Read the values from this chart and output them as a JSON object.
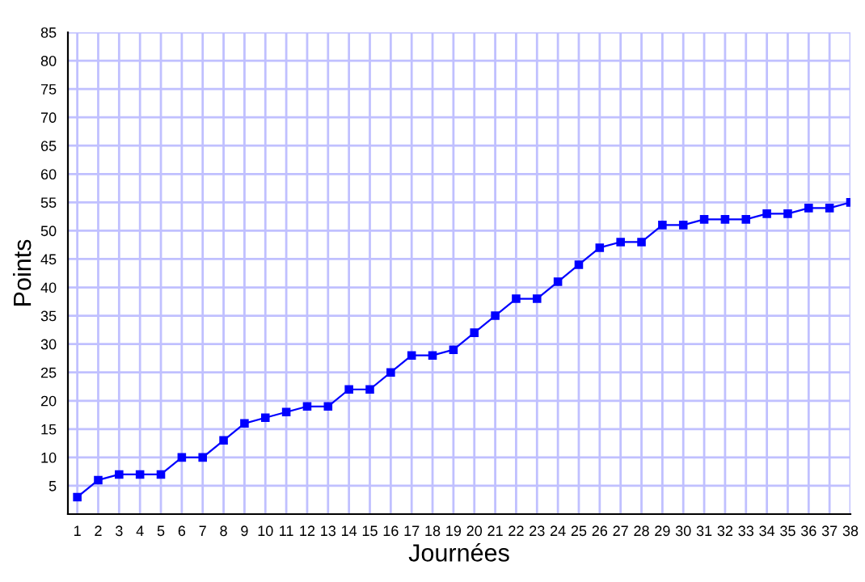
{
  "chart_data": {
    "type": "line",
    "xlabel": "Journées",
    "ylabel": "Points",
    "categories": [
      "1",
      "2",
      "3",
      "4",
      "5",
      "6",
      "7",
      "8",
      "9",
      "10",
      "11",
      "12",
      "13",
      "14",
      "15",
      "16",
      "17",
      "18",
      "19",
      "20",
      "21",
      "22",
      "23",
      "24",
      "25",
      "26",
      "27",
      "28",
      "29",
      "30",
      "31",
      "32",
      "33",
      "34",
      "35",
      "36",
      "37",
      "38"
    ],
    "series": [
      {
        "color": "#0000ff",
        "values": [
          3,
          6,
          7,
          7,
          7,
          10,
          10,
          13,
          16,
          17,
          18,
          19,
          19,
          22,
          22,
          25,
          28,
          28,
          29,
          32,
          35,
          38,
          38,
          41,
          44,
          47,
          48,
          48,
          51,
          51,
          52,
          52,
          52,
          53,
          53,
          54,
          54,
          55
        ]
      }
    ],
    "ylim": [
      0,
      85
    ],
    "yticks": [
      5,
      10,
      15,
      20,
      25,
      30,
      35,
      40,
      45,
      50,
      55,
      60,
      65,
      70,
      75,
      80,
      85
    ],
    "grid": true,
    "marker": "square",
    "line_style": "solid"
  }
}
